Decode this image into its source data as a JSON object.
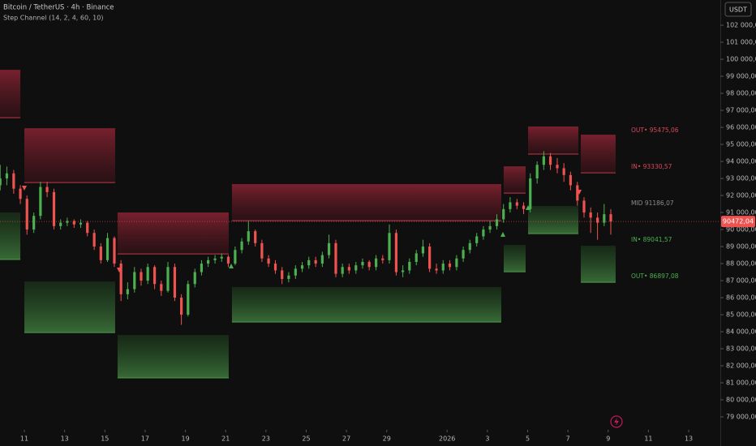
{
  "chart_data": {
    "type": "candlestick",
    "title": "Bitcoin / TetherUS · 4h · Binance",
    "subtitle": "Step Channel (14, 2, 4, 60, 10)",
    "currency": "USDT",
    "up_color": "#4caf50",
    "down_color": "#ef5350",
    "ylim": [
      78240,
      103480
    ],
    "yticks": [
      {
        "value": 79000,
        "label": "79 000,00"
      },
      {
        "value": 80000,
        "label": "80 000,00"
      },
      {
        "value": 81000,
        "label": "81 000,00"
      },
      {
        "value": 82000,
        "label": "82 000,00"
      },
      {
        "value": 83000,
        "label": "83 000,00"
      },
      {
        "value": 84000,
        "label": "84 000,00"
      },
      {
        "value": 85000,
        "label": "85 000,00"
      },
      {
        "value": 86000,
        "label": "86 000,00"
      },
      {
        "value": 87000,
        "label": "87 000,00"
      },
      {
        "value": 88000,
        "label": "88 000,00"
      },
      {
        "value": 89000,
        "label": "89 000,00"
      },
      {
        "value": 90000,
        "label": "90 000,00"
      },
      {
        "value": 91000,
        "label": "91 000,00"
      },
      {
        "value": 92000,
        "label": "92 000,00"
      },
      {
        "value": 93000,
        "label": "93 000,00"
      },
      {
        "value": 94000,
        "label": "94 000,00"
      },
      {
        "value": 95000,
        "label": "95 000,00"
      },
      {
        "value": 96000,
        "label": "96 000,00"
      },
      {
        "value": 97000,
        "label": "97 000,00"
      },
      {
        "value": 98000,
        "label": "98 000,00"
      },
      {
        "value": 99000,
        "label": "99 000,00"
      },
      {
        "value": 100000,
        "label": "100 000,00"
      },
      {
        "value": 101000,
        "label": "101 000,00"
      },
      {
        "value": 102000,
        "label": "102 000,00"
      }
    ],
    "xlim": [
      9.79,
      45.65
    ],
    "xticks": [
      11,
      13,
      15,
      17,
      19,
      21,
      23,
      25,
      27,
      29,
      {
        "value": 32,
        "label": "2026"
      },
      {
        "value": 34,
        "label": "3"
      },
      {
        "value": 36,
        "label": "5"
      },
      {
        "value": 38,
        "label": "7"
      },
      {
        "value": 40,
        "label": "9"
      },
      {
        "value": 42,
        "label": "11"
      },
      {
        "value": 44,
        "label": "13"
      }
    ],
    "x": [
      9.8,
      10.13,
      10.47,
      10.8,
      11.13,
      11.47,
      11.8,
      12.13,
      12.47,
      12.8,
      13.13,
      13.47,
      13.8,
      14.13,
      14.47,
      14.8,
      15.13,
      15.47,
      15.8,
      16.13,
      16.47,
      16.8,
      17.13,
      17.47,
      17.8,
      18.13,
      18.47,
      18.8,
      19.13,
      19.47,
      19.8,
      20.13,
      20.47,
      20.8,
      21.13,
      21.47,
      21.8,
      22.13,
      22.47,
      22.8,
      23.13,
      23.47,
      23.8,
      24.13,
      24.47,
      24.8,
      25.13,
      25.47,
      25.8,
      26.13,
      26.47,
      26.8,
      27.13,
      27.47,
      27.8,
      28.13,
      28.47,
      28.8,
      29.13,
      29.47,
      29.8,
      30.13,
      30.47,
      30.8,
      31.13,
      31.47,
      31.8,
      32.13,
      32.47,
      32.8,
      33.13,
      33.47,
      33.8,
      34.13,
      34.47,
      34.8,
      35.13,
      35.47,
      35.8,
      36.13,
      36.47,
      36.8,
      37.13,
      37.47,
      37.8,
      38.13,
      38.47,
      38.8,
      39.13,
      39.47,
      39.8,
      40.13
    ],
    "ohlc": [
      [
        92600,
        93800,
        92300,
        93000
      ],
      [
        93000,
        93700,
        92600,
        93300
      ],
      [
        93300,
        93500,
        92100,
        92400
      ],
      [
        92400,
        92600,
        91500,
        91800
      ],
      [
        91800,
        92000,
        89700,
        90000
      ],
      [
        90000,
        91000,
        89800,
        90800
      ],
      [
        90800,
        92800,
        90600,
        92500
      ],
      [
        92500,
        92800,
        91900,
        92200
      ],
      [
        92200,
        92400,
        90000,
        90200
      ],
      [
        90200,
        90600,
        90000,
        90400
      ],
      [
        90400,
        90700,
        90200,
        90500
      ],
      [
        90500,
        90600,
        90100,
        90300
      ],
      [
        90300,
        90600,
        90100,
        90400
      ],
      [
        90400,
        90500,
        89600,
        89800
      ],
      [
        89800,
        90000,
        88800,
        89000
      ],
      [
        89000,
        89200,
        88000,
        88200
      ],
      [
        88200,
        89800,
        88100,
        89500
      ],
      [
        89500,
        89600,
        87800,
        88000
      ],
      [
        88000,
        88200,
        85800,
        86200
      ],
      [
        86200,
        86900,
        85900,
        86500
      ],
      [
        86500,
        87800,
        86300,
        87500
      ],
      [
        87500,
        87700,
        86700,
        87000
      ],
      [
        87000,
        88000,
        86800,
        87800
      ],
      [
        87800,
        87900,
        86500,
        86800
      ],
      [
        86800,
        87000,
        86100,
        86400
      ],
      [
        86400,
        88100,
        86300,
        87800
      ],
      [
        87800,
        88000,
        85800,
        86000
      ],
      [
        86000,
        86200,
        84400,
        85000
      ],
      [
        85000,
        87000,
        84900,
        86800
      ],
      [
        86800,
        87700,
        86600,
        87500
      ],
      [
        87500,
        88200,
        87300,
        88000
      ],
      [
        88000,
        88400,
        87800,
        88200
      ],
      [
        88200,
        88500,
        88000,
        88300
      ],
      [
        88300,
        88600,
        88100,
        88400
      ],
      [
        88400,
        88500,
        87800,
        88000
      ],
      [
        88000,
        89000,
        87900,
        88800
      ],
      [
        88800,
        89500,
        88600,
        89300
      ],
      [
        89300,
        90500,
        89100,
        89900
      ],
      [
        89900,
        90000,
        89000,
        89200
      ],
      [
        89200,
        89400,
        88100,
        88300
      ],
      [
        88300,
        88500,
        87800,
        88000
      ],
      [
        88000,
        88200,
        87400,
        87600
      ],
      [
        87600,
        87800,
        86800,
        87100
      ],
      [
        87100,
        87500,
        86900,
        87300
      ],
      [
        87300,
        87900,
        87100,
        87700
      ],
      [
        87700,
        88100,
        87500,
        87900
      ],
      [
        87900,
        88400,
        87700,
        88200
      ],
      [
        88200,
        88400,
        87800,
        88000
      ],
      [
        88000,
        88700,
        87800,
        88500
      ],
      [
        88500,
        89700,
        88300,
        89200
      ],
      [
        89200,
        89400,
        87200,
        87400
      ],
      [
        87400,
        88000,
        87200,
        87800
      ],
      [
        87800,
        88000,
        87400,
        87600
      ],
      [
        87600,
        88100,
        87400,
        87900
      ],
      [
        87900,
        88300,
        87700,
        88100
      ],
      [
        88100,
        88200,
        87600,
        87800
      ],
      [
        87800,
        88500,
        87600,
        88300
      ],
      [
        88300,
        88500,
        88000,
        88200
      ],
      [
        88200,
        90300,
        88000,
        89800
      ],
      [
        89800,
        90000,
        87300,
        87500
      ],
      [
        87500,
        87900,
        87200,
        87600
      ],
      [
        87600,
        88300,
        87400,
        88100
      ],
      [
        88100,
        88800,
        87900,
        88600
      ],
      [
        88600,
        89400,
        88400,
        89000
      ],
      [
        89000,
        89200,
        87500,
        87700
      ],
      [
        87700,
        88000,
        87400,
        87600
      ],
      [
        87600,
        88200,
        87400,
        88000
      ],
      [
        88000,
        88200,
        87600,
        87800
      ],
      [
        87800,
        88500,
        87600,
        88300
      ],
      [
        88300,
        89000,
        88100,
        88800
      ],
      [
        88800,
        89400,
        88600,
        89200
      ],
      [
        89200,
        89800,
        89000,
        89600
      ],
      [
        89600,
        90200,
        89400,
        90000
      ],
      [
        90000,
        90500,
        89800,
        90200
      ],
      [
        90200,
        90900,
        90000,
        90600
      ],
      [
        90600,
        91500,
        90400,
        91200
      ],
      [
        91200,
        91900,
        91000,
        91600
      ],
      [
        91600,
        91800,
        91200,
        91400
      ],
      [
        91400,
        91600,
        90900,
        91200
      ],
      [
        91200,
        93300,
        91000,
        93000
      ],
      [
        93000,
        94000,
        92700,
        93800
      ],
      [
        93800,
        94600,
        93500,
        94300
      ],
      [
        94300,
        94500,
        93500,
        93800
      ],
      [
        93800,
        94200,
        93300,
        93600
      ],
      [
        93600,
        93900,
        92800,
        93200
      ],
      [
        93200,
        93400,
        92300,
        92600
      ],
      [
        92600,
        92800,
        91400,
        91700
      ],
      [
        91700,
        91900,
        90700,
        91000
      ],
      [
        91000,
        91300,
        89800,
        90700
      ],
      [
        90700,
        91000,
        89400,
        90400
      ],
      [
        90400,
        91500,
        90200,
        90900
      ],
      [
        90900,
        91200,
        89700,
        90472.04
      ]
    ],
    "channels": [
      {
        "x": [
          9.79,
          10.8
        ],
        "upper": [
          99380,
          96570
        ],
        "lower": [
          91000,
          88240
        ]
      },
      {
        "x": [
          11,
          15.51
        ],
        "upper": [
          95950,
          92760
        ],
        "lower": [
          86950,
          83950
        ]
      },
      {
        "x": [
          15.63,
          21.15
        ],
        "upper": [
          91000,
          88570
        ],
        "lower": [
          83810,
          81290
        ]
      },
      {
        "x": [
          21.31,
          34.69
        ],
        "upper": [
          92670,
          90520
        ],
        "lower": [
          86620,
          84570
        ]
      },
      {
        "x": [
          34.81,
          35.9
        ],
        "upper": [
          93710,
          92140
        ],
        "lower": [
          89100,
          87520
        ]
      },
      {
        "x": [
          36.02,
          38.52
        ],
        "upper": [
          96050,
          94430
        ],
        "lower": [
          91380,
          89760
        ]
      },
      {
        "x": [
          38.64,
          40.37
        ],
        "upper": [
          95570,
          93330
        ],
        "lower": [
          89050,
          86900
        ]
      }
    ],
    "levels": [
      {
        "label": "OUT• 95475,06",
        "value": 95475.06,
        "color": "#d8475a"
      },
      {
        "label": "IN• 93330,57",
        "value": 93330.57,
        "color": "#d8475a"
      },
      {
        "label": "MID  91186,07",
        "value": 91186.07,
        "color": "#8c8c8c"
      },
      {
        "label": "IN• 89041,57",
        "value": 89041.57,
        "color": "#4caf50"
      },
      {
        "label": "OUT• 86897,08",
        "value": 86897.08,
        "color": "#4caf50"
      }
    ],
    "last_price": {
      "value": 90472.04,
      "label": "90472,04"
    }
  }
}
